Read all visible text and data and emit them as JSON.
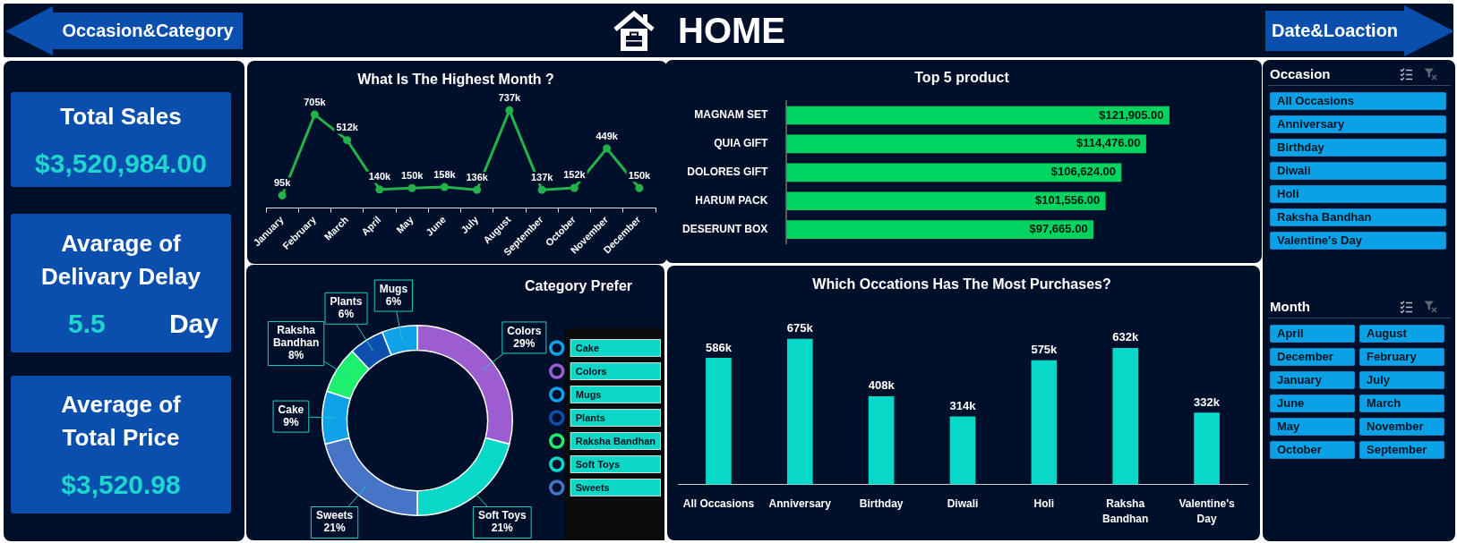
{
  "chart_data": [
    {
      "type": "other",
      "title": "HOME",
      "annotations": [
        "Occasion&Category",
        "Date&Loaction"
      ]
    },
    {
      "type": "other",
      "title": "Total Sales",
      "annotations": [
        "$3,520,984.00"
      ]
    },
    {
      "type": "other",
      "title": "Avarage of Delivary Delay",
      "annotations": [
        "5.5",
        "Day"
      ]
    },
    {
      "type": "other",
      "title": "Average of Total Price",
      "annotations": [
        "$3,520.98"
      ]
    },
    {
      "type": "line",
      "title": "What Is The Highest Month ?",
      "categories": [
        "January",
        "February",
        "March",
        "April",
        "May",
        "June",
        "July",
        "August",
        "September",
        "October",
        "November",
        "December"
      ],
      "values": [
        95,
        705,
        512,
        140,
        150,
        158,
        136,
        737,
        137,
        152,
        449,
        150
      ],
      "value_labels": [
        "95k",
        "705k",
        "512k",
        "140k",
        "150k",
        "158k",
        "136k",
        "737k",
        "137k",
        "152k",
        "449k",
        "150k"
      ],
      "color": "#21b24b",
      "marker": "circle"
    },
    {
      "type": "bar",
      "orientation": "horizontal",
      "title": "Top 5 product",
      "categories": [
        "MAGNAM SET",
        "QUIA GIFT",
        "DOLORES GIFT",
        "HARUM PACK",
        "DESERUNT BOX"
      ],
      "values": [
        121905,
        114476,
        106624,
        101556,
        97665
      ],
      "value_labels": [
        "$121,905.00",
        "$114,476.00",
        "$106,624.00",
        "$101,556.00",
        "$97,665.00"
      ],
      "color": "#00d35f"
    },
    {
      "type": "other",
      "title": "Occasion",
      "annotations": [
        "All Occasions",
        "Anniversary",
        "Birthday",
        "Diwali",
        "Holi",
        "Raksha Bandhan",
        "Valentine's Day"
      ]
    },
    {
      "type": "donut",
      "title": "Category Prefer",
      "categories": [
        "Colors",
        "Soft Toys",
        "Sweets",
        "Cake",
        "Raksha Bandhan",
        "Plants",
        "Mugs"
      ],
      "values": [
        29,
        21,
        21,
        9,
        8,
        6,
        6
      ],
      "value_labels": [
        "29%",
        "21%",
        "21%",
        "9%",
        "8%",
        "6%",
        "6%"
      ],
      "colors": [
        "#9b5dcf",
        "#08d8c8",
        "#4674c6",
        "#10a2e8",
        "#1cf06c",
        "#0c4fae",
        "#10a2e8"
      ],
      "legend": "right"
    },
    {
      "type": "bar",
      "title": "Which Occations Has The Most Purchases?",
      "categories": [
        "All Occasions",
        "Anniversary",
        "Birthday",
        "Diwali",
        "Holi",
        "Raksha Bandhan",
        "Valentine's Day"
      ],
      "values": [
        586,
        675,
        408,
        314,
        575,
        632,
        332
      ],
      "value_labels": [
        "586k",
        "675k",
        "408k",
        "314k",
        "575k",
        "632k",
        "332k"
      ],
      "color": "#07d9c9"
    },
    {
      "type": "other",
      "title": "Month",
      "annotations": [
        "April",
        "August",
        "December",
        "February",
        "January",
        "July",
        "June",
        "March",
        "May",
        "November",
        "October",
        "September"
      ]
    }
  ]
}
